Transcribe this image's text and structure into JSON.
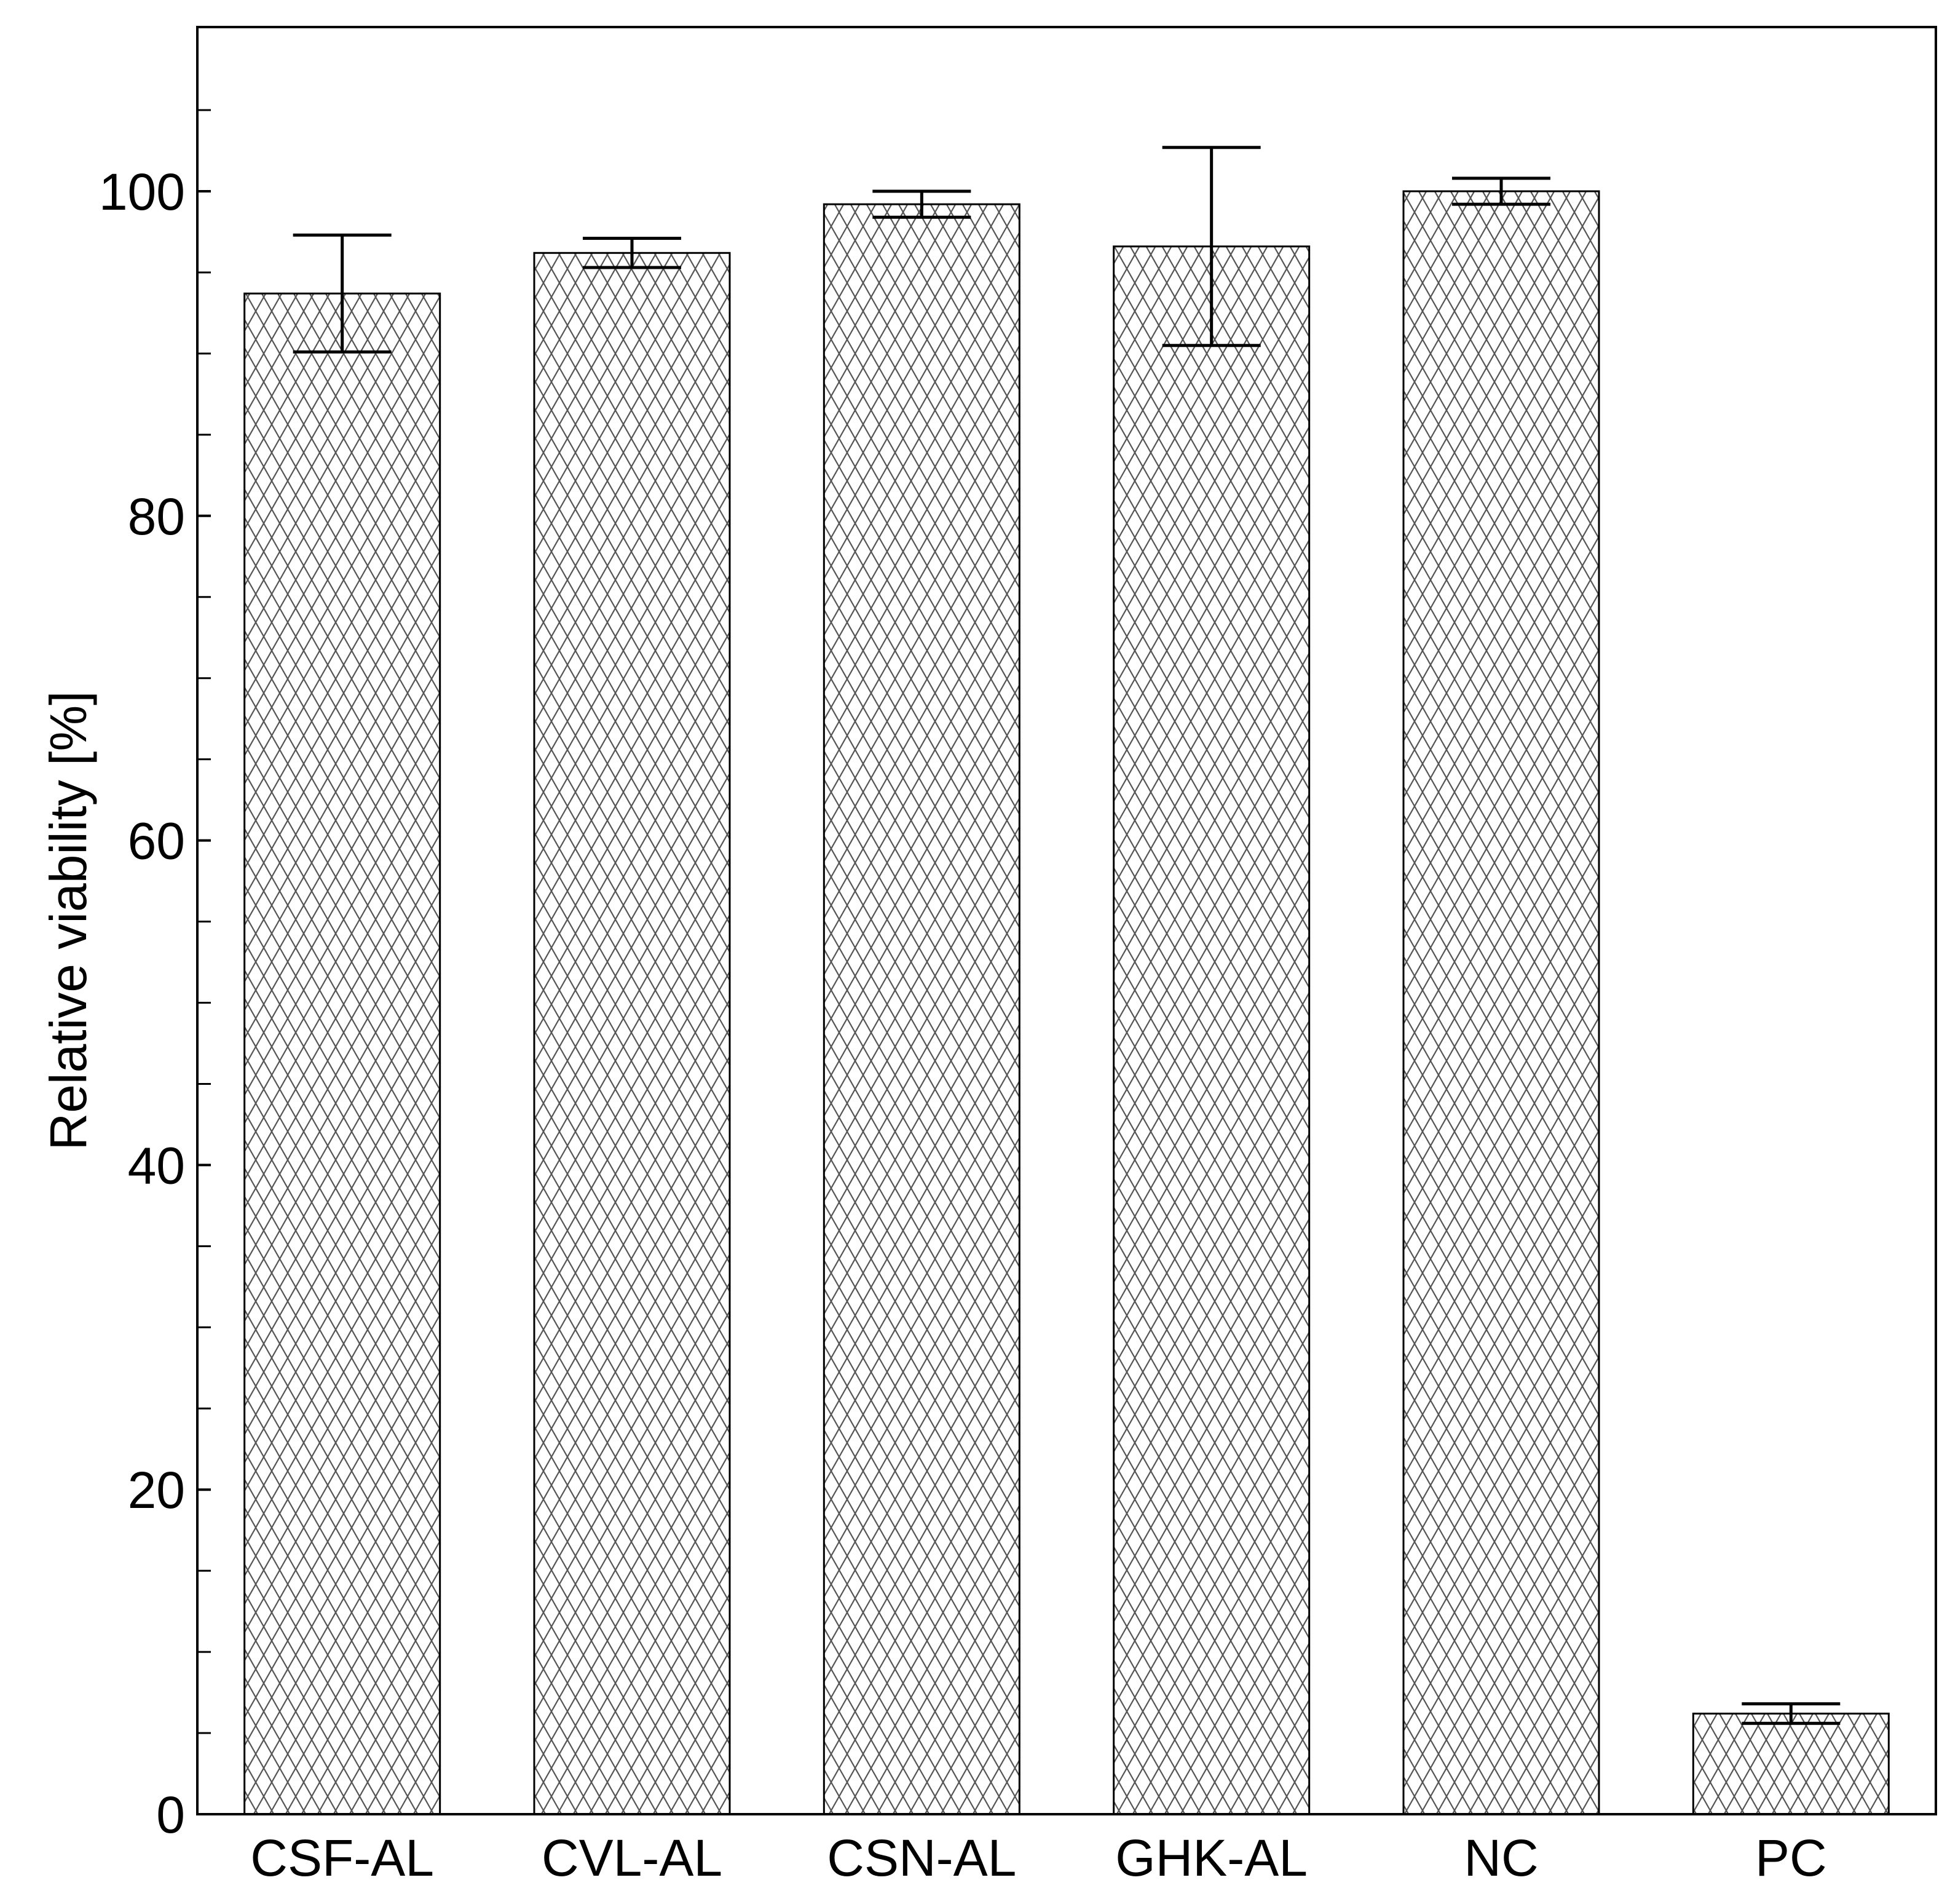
{
  "chart_data": {
    "type": "bar",
    "ylabel": "Relative viability [%]",
    "xlabel": "",
    "ylim": [
      0,
      110
    ],
    "y_major_ticks": [
      0,
      20,
      40,
      60,
      80,
      100
    ],
    "y_minor_ticks": [
      5,
      10,
      15,
      25,
      30,
      35,
      45,
      50,
      55,
      65,
      70,
      75,
      85,
      90,
      95,
      105
    ],
    "grid": false,
    "fill_pattern": "diagonal-crosshatch",
    "categories": [
      "CSF-AL",
      "CVL-AL",
      "CSN-AL",
      "GHK-AL",
      "NC",
      "PC"
    ],
    "values": [
      93.7,
      96.2,
      99.2,
      96.6,
      100.0,
      6.2
    ],
    "errors": [
      3.6,
      0.9,
      0.8,
      6.1,
      0.8,
      0.6
    ]
  }
}
